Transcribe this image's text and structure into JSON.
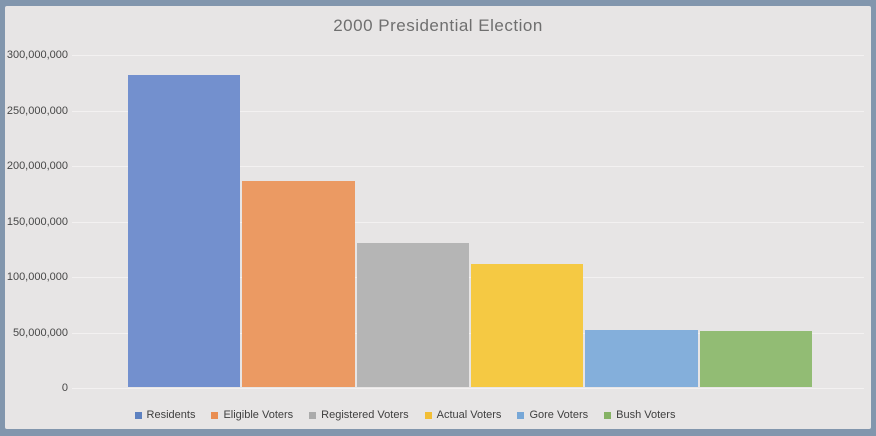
{
  "chart_data": {
    "type": "bar",
    "title": "2000 Presidential Election",
    "categories": [
      "Residents",
      "Eligible Voters",
      "Registered Voters",
      "Actual Voters",
      "Gore Voters",
      "Bush Voters"
    ],
    "values": [
      281400000,
      186000000,
      129500000,
      110800000,
      51000000,
      50000000
    ],
    "ylim": [
      0,
      300000000
    ],
    "ytick_step": 50000000,
    "yticks_top_to_bottom": [
      "300,000,000",
      "250,000,000",
      "200,000,000",
      "150,000,000",
      "100,000,000",
      "50,000,000",
      "0"
    ],
    "grid": true,
    "legend_position": "bottom",
    "xlabel": "",
    "ylabel": "",
    "series_colors": [
      "#7390CE",
      "#EB9A63",
      "#B5B5B5",
      "#F5C943",
      "#84AFDB",
      "#92BC74"
    ],
    "legend_swatch_colors": [
      "#5D81C0",
      "#E98D51",
      "#ABABAB",
      "#F2BE35",
      "#77A7D7",
      "#85B264"
    ]
  },
  "theme": {
    "frame_color": "#8296AD",
    "background_color": "#E7E5E5",
    "gridline_color": "#F3F1F1",
    "title_color": "#6F6F6F",
    "tick_label_color": "#474747",
    "legend_text_color": "#3F3F3F"
  }
}
